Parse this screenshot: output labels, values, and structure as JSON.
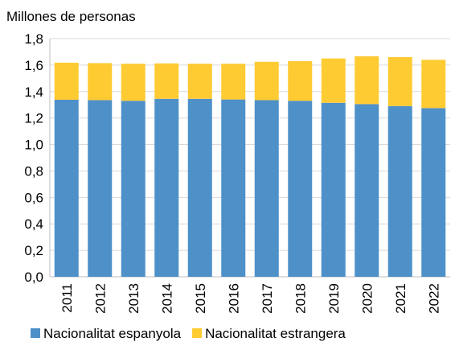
{
  "chart_data": {
    "type": "stacked_bar",
    "y_label": "Millones de personas",
    "categories": [
      "2011",
      "2012",
      "2013",
      "2014",
      "2015",
      "2016",
      "2017",
      "2018",
      "2019",
      "2020",
      "2021",
      "2022"
    ],
    "series": [
      {
        "name": "Nacionalitat espanyola",
        "color": "#4e90c8",
        "values": [
          1.338,
          1.335,
          1.33,
          1.345,
          1.345,
          1.34,
          1.335,
          1.33,
          1.315,
          1.305,
          1.29,
          1.275
        ]
      },
      {
        "name": "Nacionalitat estrangera",
        "color": "#ffcb33",
        "values": [
          0.28,
          0.28,
          0.28,
          0.268,
          0.265,
          0.27,
          0.29,
          0.3,
          0.335,
          0.362,
          0.37,
          0.365
        ]
      }
    ],
    "ylim": [
      0,
      1.8
    ],
    "yticks": [
      {
        "value": 0,
        "label": "0,0"
      },
      {
        "value": 0.2,
        "label": "0,2"
      },
      {
        "value": 0.4,
        "label": "0,4"
      },
      {
        "value": 0.6,
        "label": "0,6"
      },
      {
        "value": 0.8,
        "label": "0,8"
      },
      {
        "value": 1,
        "label": "1,0"
      },
      {
        "value": 1.2,
        "label": "1,2"
      },
      {
        "value": 1.4,
        "label": "1,4"
      },
      {
        "value": 1.6,
        "label": "1,6"
      },
      {
        "value": 1.8,
        "label": "1,8"
      }
    ],
    "grid": true
  }
}
